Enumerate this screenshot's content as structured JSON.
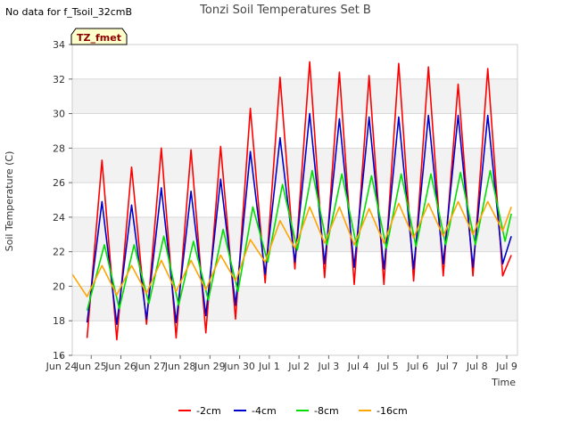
{
  "header": {
    "no_data_note": "No data for f_Tsoil_32cmB",
    "title": "Tonzi Soil Temperatures Set B",
    "badge": "TZ_fmet"
  },
  "colors": {
    "band": "#f2f2f2",
    "grid": "#d9d9d9",
    "badge_fill": "#ffffcc",
    "badge_text": "#8b0000"
  },
  "chart_data": {
    "type": "line",
    "title": "Tonzi Soil Temperatures Set B",
    "xlabel": "Time",
    "ylabel": "Soil Temperature (C)",
    "xlim": [
      "2024-06-24",
      "2024-07-09"
    ],
    "ylim": [
      16,
      34
    ],
    "y_ticks": [
      16,
      18,
      20,
      22,
      24,
      26,
      28,
      30,
      32,
      34
    ],
    "x_tick_labels": [
      "Jun 24",
      "Jun 25",
      "Jun 26",
      "Jun 27",
      "Jun 28",
      "Jun 29",
      "Jun 30",
      "Jul 1",
      "Jul 2",
      "Jul 3",
      "Jul 4",
      "Jul 5",
      "Jul 6",
      "Jul 7",
      "Jul 8",
      "Jul 9"
    ],
    "legend_position": "bottom",
    "grid": true,
    "series": [
      {
        "name": "-2cm",
        "color": "#ff0000",
        "x": [
          "2024-06-24 12:00",
          "2024-06-25 00:00",
          "2024-06-25 12:00",
          "2024-06-26 00:00",
          "2024-06-26 12:00",
          "2024-06-27 00:00",
          "2024-06-27 12:00",
          "2024-06-28 00:00",
          "2024-06-28 12:00",
          "2024-06-29 00:00",
          "2024-06-29 12:00",
          "2024-06-30 00:00",
          "2024-06-30 12:00",
          "2024-07-01 00:00",
          "2024-07-01 12:00",
          "2024-07-02 00:00",
          "2024-07-02 12:00",
          "2024-07-03 00:00",
          "2024-07-03 12:00",
          "2024-07-04 00:00",
          "2024-07-04 12:00",
          "2024-07-05 00:00",
          "2024-07-05 12:00",
          "2024-07-06 00:00",
          "2024-07-06 12:00",
          "2024-07-07 00:00",
          "2024-07-07 12:00",
          "2024-07-08 00:00",
          "2024-07-08 12:00",
          "2024-07-08 19:00"
        ],
        "y": [
          17.0,
          27.3,
          16.9,
          26.9,
          17.8,
          28.0,
          17.0,
          27.9,
          17.3,
          28.1,
          18.1,
          30.3,
          20.2,
          32.1,
          21.0,
          33.0,
          20.5,
          32.4,
          20.1,
          32.2,
          20.1,
          32.9,
          20.3,
          32.7,
          20.6,
          31.7,
          20.6,
          32.6,
          20.6,
          21.8
        ]
      },
      {
        "name": "-4cm",
        "color": "#0000cc",
        "x": [
          "2024-06-24 12:00",
          "2024-06-25 00:00",
          "2024-06-25 12:00",
          "2024-06-26 00:00",
          "2024-06-26 12:00",
          "2024-06-27 00:00",
          "2024-06-27 12:00",
          "2024-06-28 00:00",
          "2024-06-28 12:00",
          "2024-06-29 00:00",
          "2024-06-29 12:00",
          "2024-06-30 00:00",
          "2024-06-30 12:00",
          "2024-07-01 00:00",
          "2024-07-01 12:00",
          "2024-07-02 00:00",
          "2024-07-02 12:00",
          "2024-07-03 00:00",
          "2024-07-03 12:00",
          "2024-07-04 00:00",
          "2024-07-04 12:00",
          "2024-07-05 00:00",
          "2024-07-05 12:00",
          "2024-07-06 00:00",
          "2024-07-06 12:00",
          "2024-07-07 00:00",
          "2024-07-07 12:00",
          "2024-07-08 00:00",
          "2024-07-08 12:00",
          "2024-07-08 19:00"
        ],
        "y": [
          17.9,
          24.9,
          17.8,
          24.7,
          18.1,
          25.7,
          17.9,
          25.5,
          18.3,
          26.2,
          18.9,
          27.8,
          20.7,
          28.6,
          21.4,
          30.0,
          21.3,
          29.7,
          21.1,
          29.8,
          21.0,
          29.8,
          21.0,
          29.9,
          21.3,
          29.9,
          21.1,
          29.9,
          21.3,
          22.9
        ]
      },
      {
        "name": "-8cm",
        "color": "#00dd00",
        "x": [
          "2024-06-24 12:00",
          "2024-06-25 02:00",
          "2024-06-25 14:00",
          "2024-06-26 02:00",
          "2024-06-26 14:00",
          "2024-06-27 02:00",
          "2024-06-27 14:00",
          "2024-06-28 02:00",
          "2024-06-28 14:00",
          "2024-06-29 02:00",
          "2024-06-29 14:00",
          "2024-06-30 02:00",
          "2024-06-30 14:00",
          "2024-07-01 02:00",
          "2024-07-01 14:00",
          "2024-07-02 02:00",
          "2024-07-02 14:00",
          "2024-07-03 02:00",
          "2024-07-03 14:00",
          "2024-07-04 02:00",
          "2024-07-04 14:00",
          "2024-07-05 02:00",
          "2024-07-05 14:00",
          "2024-07-06 02:00",
          "2024-07-06 14:00",
          "2024-07-07 02:00",
          "2024-07-07 14:00",
          "2024-07-08 02:00",
          "2024-07-08 14:00",
          "2024-07-08 19:00"
        ],
        "y": [
          18.6,
          22.4,
          18.7,
          22.4,
          19.0,
          22.9,
          18.9,
          22.6,
          19.2,
          23.3,
          19.7,
          24.6,
          21.4,
          25.9,
          22.1,
          26.7,
          22.4,
          26.5,
          22.3,
          26.4,
          22.2,
          26.5,
          22.3,
          26.5,
          22.4,
          26.6,
          22.4,
          26.7,
          22.6,
          24.2
        ]
      },
      {
        "name": "-16cm",
        "color": "#ffa500",
        "x": [
          "2024-06-24 00:00",
          "2024-06-24 12:00",
          "2024-06-25 00:00",
          "2024-06-25 12:00",
          "2024-06-26 00:00",
          "2024-06-26 12:00",
          "2024-06-27 00:00",
          "2024-06-27 12:00",
          "2024-06-28 00:00",
          "2024-06-28 12:00",
          "2024-06-29 00:00",
          "2024-06-29 12:00",
          "2024-06-30 00:00",
          "2024-06-30 12:00",
          "2024-07-01 00:00",
          "2024-07-01 12:00",
          "2024-07-02 00:00",
          "2024-07-02 12:00",
          "2024-07-03 00:00",
          "2024-07-03 12:00",
          "2024-07-04 00:00",
          "2024-07-04 12:00",
          "2024-07-05 00:00",
          "2024-07-05 12:00",
          "2024-07-06 00:00",
          "2024-07-06 12:00",
          "2024-07-07 00:00",
          "2024-07-07 12:00",
          "2024-07-08 00:00",
          "2024-07-08 12:00",
          "2024-07-08 19:00"
        ],
        "y": [
          20.7,
          19.4,
          21.2,
          19.5,
          21.2,
          19.6,
          21.5,
          19.7,
          21.5,
          19.8,
          21.8,
          20.3,
          22.7,
          21.4,
          23.8,
          22.2,
          24.6,
          22.5,
          24.6,
          22.4,
          24.5,
          22.5,
          24.8,
          22.8,
          24.8,
          22.9,
          24.9,
          23.0,
          24.9,
          23.2,
          24.6
        ]
      }
    ]
  }
}
